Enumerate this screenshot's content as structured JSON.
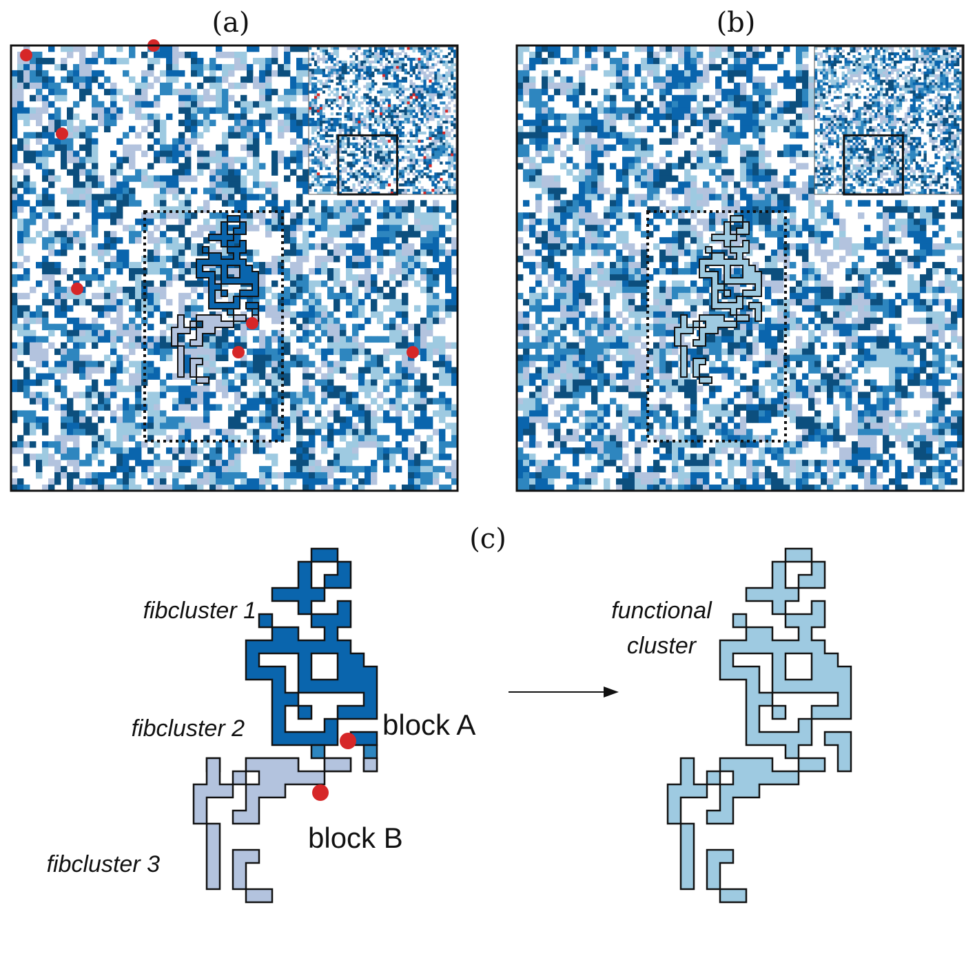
{
  "figure": {
    "panels": [
      {
        "id": "a",
        "label": "(a)"
      },
      {
        "id": "b",
        "label": "(b)"
      },
      {
        "id": "c",
        "label": "(c)"
      }
    ],
    "panel_c": {
      "labels": {
        "fibcluster_1": "fibcluster 1",
        "fibcluster_2": "fibcluster 2",
        "fibcluster_3": "fibcluster 3",
        "block_a": "block A",
        "block_b": "block B",
        "functional_line1": "functional",
        "functional_line2": "cluster"
      }
    }
  },
  "colors": {
    "palette": [
      "#ffffff",
      "#0c4f7e",
      "#0a65ad",
      "#2e86bf",
      "#9ecae1",
      "#b3c3de",
      "#ffffff",
      "#ffffff"
    ],
    "fibcluster_1": "#0a65ad",
    "fibcluster_2": "#2e86bf",
    "fibcluster_3": "#b3c3de",
    "functional": "#9ecae1",
    "block_marker": "#d62728",
    "frame": "#111111"
  }
}
